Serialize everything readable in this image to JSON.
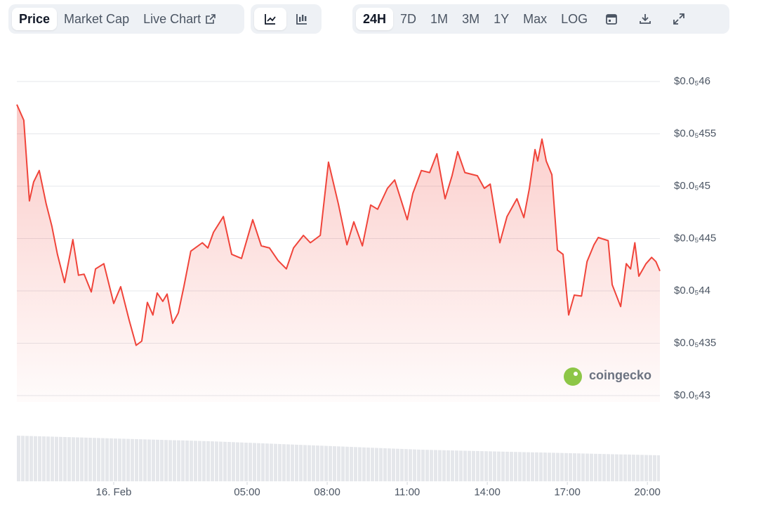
{
  "views": [
    "Price",
    "Market Cap",
    "Live Chart"
  ],
  "ranges": [
    "24H",
    "7D",
    "1M",
    "3M",
    "1Y",
    "Max",
    "LOG"
  ],
  "watermark": "coingecko",
  "chart_data": {
    "type": "area",
    "color": "#f0443a",
    "grid": true,
    "xlim": [
      -3.63,
      20.47
    ],
    "ylim": [
      4.3e-06,
      4.6e-06
    ],
    "yticks": [
      {
        "value": 4.3e-06,
        "label": "$0.0₅43"
      },
      {
        "value": 4.35e-06,
        "label": "$0.0₅435"
      },
      {
        "value": 4.4e-06,
        "label": "$0.0₅44"
      },
      {
        "value": 4.45e-06,
        "label": "$0.0₅445"
      },
      {
        "value": 4.5e-06,
        "label": "$0.0₅45"
      },
      {
        "value": 4.55e-06,
        "label": "$0.0₅455"
      },
      {
        "value": 4.6e-06,
        "label": "$0.0₅46"
      }
    ],
    "xticks": [
      {
        "value": 0,
        "label": "16. Feb"
      },
      {
        "value": 5,
        "label": "05:00"
      },
      {
        "value": 8,
        "label": "08:00"
      },
      {
        "value": 11,
        "label": "11:00"
      },
      {
        "value": 14,
        "label": "14:00"
      },
      {
        "value": 17,
        "label": "17:00"
      },
      {
        "value": 20,
        "label": "20:00"
      }
    ],
    "x": [
      -3.63,
      -3.37,
      -3.16,
      -3.0,
      -2.79,
      -2.53,
      -2.32,
      -2.11,
      -1.84,
      -1.53,
      -1.32,
      -1.11,
      -0.84,
      -0.68,
      -0.37,
      0,
      0.26,
      0.58,
      0.84,
      1.05,
      1.26,
      1.47,
      1.63,
      1.84,
      2.0,
      2.21,
      2.42,
      2.63,
      2.89,
      3.32,
      3.53,
      3.74,
      4.11,
      4.42,
      4.79,
      5.21,
      5.53,
      5.84,
      6.16,
      6.47,
      6.74,
      7.11,
      7.37,
      7.74,
      8.05,
      8.42,
      8.74,
      9.0,
      9.32,
      9.63,
      9.89,
      10.26,
      10.53,
      11.0,
      11.21,
      11.53,
      11.84,
      12.11,
      12.42,
      12.68,
      12.89,
      13.16,
      13.63,
      13.89,
      14.11,
      14.47,
      14.74,
      15.11,
      15.37,
      15.58,
      15.79,
      15.89,
      16.05,
      16.21,
      16.42,
      16.63,
      16.84,
      17.05,
      17.26,
      17.53,
      17.74,
      18.0,
      18.16,
      18.53,
      18.68,
      19.0,
      19.21,
      19.37,
      19.53,
      19.68,
      19.95,
      20.16,
      20.32,
      20.47
    ],
    "values": [
      4.578e-06,
      4.563e-06,
      4.486e-06,
      4.504e-06,
      4.515e-06,
      4.483e-06,
      4.462e-06,
      4.435e-06,
      4.408e-06,
      4.449e-06,
      4.415e-06,
      4.416e-06,
      4.399e-06,
      4.421e-06,
      4.426e-06,
      4.388e-06,
      4.404e-06,
      4.372e-06,
      4.348e-06,
      4.352e-06,
      4.389e-06,
      4.377e-06,
      4.398e-06,
      4.39e-06,
      4.397e-06,
      4.369e-06,
      4.379e-06,
      4.404e-06,
      4.438e-06,
      4.446e-06,
      4.441e-06,
      4.456e-06,
      4.471e-06,
      4.435e-06,
      4.431e-06,
      4.468e-06,
      4.443e-06,
      4.441e-06,
      4.429e-06,
      4.421e-06,
      4.441e-06,
      4.453e-06,
      4.446e-06,
      4.453e-06,
      4.523e-06,
      4.483e-06,
      4.444e-06,
      4.466e-06,
      4.443e-06,
      4.482e-06,
      4.478e-06,
      4.498e-06,
      4.506e-06,
      4.468e-06,
      4.493e-06,
      4.515e-06,
      4.513e-06,
      4.531e-06,
      4.488e-06,
      4.51e-06,
      4.533e-06,
      4.513e-06,
      4.51e-06,
      4.498e-06,
      4.502e-06,
      4.446e-06,
      4.471e-06,
      4.488e-06,
      4.47e-06,
      4.498e-06,
      4.535e-06,
      4.524e-06,
      4.545e-06,
      4.524e-06,
      4.511e-06,
      4.439e-06,
      4.435e-06,
      4.377e-06,
      4.396e-06,
      4.395e-06,
      4.428e-06,
      4.444e-06,
      4.451e-06,
      4.448e-06,
      4.406e-06,
      4.385e-06,
      4.426e-06,
      4.421e-06,
      4.446e-06,
      4.414e-06,
      4.426e-06,
      4.432e-06,
      4.428e-06,
      4.419e-06
    ]
  }
}
